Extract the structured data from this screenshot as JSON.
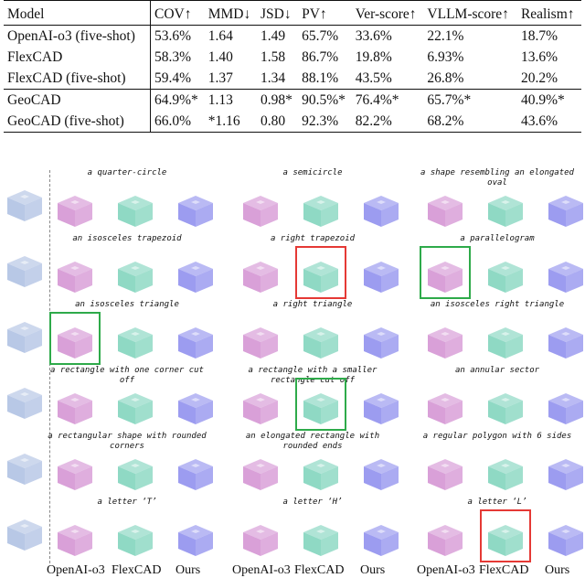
{
  "table": {
    "headers": [
      "Model",
      "COV↑",
      "MMD↓",
      "JSD↓",
      "PV↑",
      "Ver-score↑",
      "VLLM-score↑",
      "Realism↑"
    ],
    "rows": [
      {
        "model": "OpenAI-o3 (five-shot)",
        "cells": [
          "53.6%",
          "1.64",
          "1.49",
          "65.7%",
          "33.6%",
          "22.1%",
          "18.7%"
        ]
      },
      {
        "model": "FlexCAD",
        "cells": [
          "58.3%",
          "1.40",
          "1.58",
          "86.7%",
          "19.8%",
          "6.93%",
          "13.6%"
        ]
      },
      {
        "model": "FlexCAD (five-shot)",
        "cells": [
          "59.4%",
          "1.37",
          "1.34",
          "88.1%",
          "43.5%",
          "26.8%",
          "20.2%"
        ]
      },
      {
        "model": "GeoCAD",
        "cells": [
          "64.9%*",
          "1.13",
          "0.98*",
          "90.5%*",
          "76.4%*",
          "65.7%*",
          "40.9%*"
        ]
      },
      {
        "model": "GeoCAD (five-shot)",
        "cells": [
          "66.0%",
          "*1.16",
          "0.80",
          "92.3%",
          "82.2%",
          "68.2%",
          "43.6%"
        ]
      }
    ]
  },
  "grid": {
    "rows": [
      {
        "captions": [
          "a quarter-circle",
          "a semicircle",
          "a shape resembling an elongated oval"
        ]
      },
      {
        "captions": [
          "an isosceles trapezoid",
          "a right trapezoid",
          "a parallelogram"
        ]
      },
      {
        "captions": [
          "an isosceles triangle",
          "a right triangle",
          "an isosceles right triangle"
        ]
      },
      {
        "captions": [
          "a rectangle with one corner cut off",
          "a rectangle with a smaller rectangle cut off",
          "an annular sector"
        ]
      },
      {
        "captions": [
          "a rectangular shape with rounded corners",
          "an elongated rectangle with rounded ends",
          "a regular polygon with 6 sides"
        ]
      },
      {
        "captions": [
          "a letter ‘T’",
          "a letter ‘H’",
          "a letter ‘L’"
        ]
      }
    ],
    "colors": {
      "openai": "#d9a0d8",
      "flexcad": "#8fd9c4",
      "ours": "#9c9cf0",
      "ref": "#b8c8e6",
      "red": "#e53935",
      "green": "#2eaa4a"
    }
  },
  "labels": [
    "OpenAI-o3",
    "FlexCAD",
    "Ours",
    "OpenAI-o3",
    "FlexCAD",
    "Ours",
    "OpenAI-o3",
    "FlexCAD",
    "Ours"
  ]
}
